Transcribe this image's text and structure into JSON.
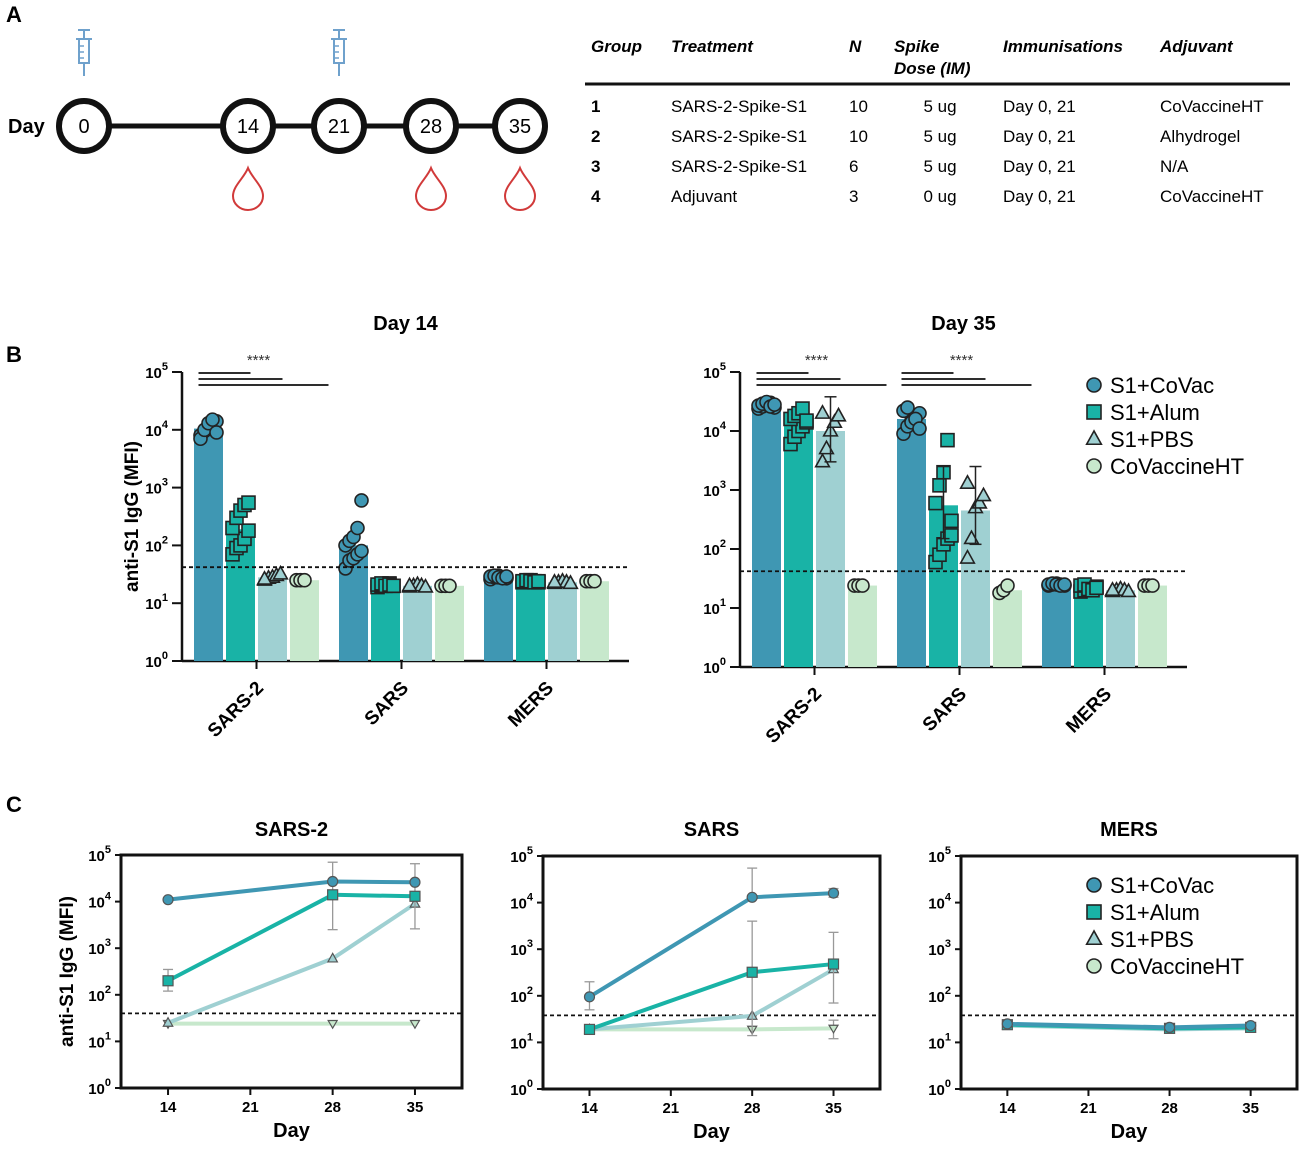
{
  "figure": {
    "panels": {
      "A": "A",
      "B": "B",
      "C": "C"
    }
  },
  "colors": {
    "S1+CoVac": "#3f97b3",
    "S1+Alum": "#19b3a6",
    "S1+PBS": "#9fd0d2",
    "CoVaccineHT": "#c7e8cc",
    "syringe": "#6fa1cc",
    "blood": "#d13a3a"
  },
  "timeline": {
    "axis_label": "Day",
    "days": [
      "0",
      "14",
      "21",
      "28",
      "35"
    ],
    "immunisation_days": [
      "0",
      "21"
    ],
    "bleed_days": [
      "14",
      "28",
      "35"
    ],
    "icons": {
      "immunisation": "syringe-icon",
      "bleed": "blood-drop-icon"
    }
  },
  "table": {
    "headers": [
      "Group",
      "Treatment",
      "N",
      "Spike Dose (IM)",
      "Immunisations",
      "Adjuvant"
    ],
    "header_lines": [
      [
        "Group"
      ],
      [
        "Treatment"
      ],
      [
        "N"
      ],
      [
        "Spike",
        "Dose (IM)"
      ],
      [
        "Immunisations"
      ],
      [
        "Adjuvant"
      ]
    ],
    "rows": [
      [
        "1",
        "SARS-2-Spike-S1",
        "10",
        "5 ug",
        "Day 0, 21",
        "CoVaccineHT"
      ],
      [
        "2",
        "SARS-2-Spike-S1",
        "10",
        "5 ug",
        "Day 0, 21",
        "Alhydrogel"
      ],
      [
        "3",
        "SARS-2-Spike-S1",
        "6",
        "5 ug",
        "Day 0, 21",
        "N/A"
      ],
      [
        "4",
        "Adjuvant",
        "3",
        "0 ug",
        "Day 0, 21",
        "CoVaccineHT"
      ]
    ]
  },
  "legend": {
    "entries": [
      {
        "label": "S1+CoVac",
        "marker": "circle"
      },
      {
        "label": "S1+Alum",
        "marker": "square"
      },
      {
        "label": "S1+PBS",
        "marker": "triangle"
      },
      {
        "label": "CoVaccineHT",
        "marker": "circle"
      }
    ]
  },
  "chart_data": [
    {
      "id": "B1",
      "type": "bar",
      "title": "Day 14",
      "ylabel": "anti-S1 IgG (MFI)",
      "xlabel": "",
      "yscale": "log",
      "ylim": [
        1,
        100000
      ],
      "ytick_exponents": [
        "0",
        "1",
        "2",
        "3",
        "4",
        "5"
      ],
      "categories": [
        "SARS-2",
        "SARS",
        "MERS"
      ],
      "cutoff": 42,
      "significance": {
        "label": "****",
        "category": "SARS-2",
        "comparisons": 3
      },
      "series": [
        {
          "name": "S1+CoVac",
          "values": [
            10500,
            100,
            28
          ],
          "points": [
            [
              8000,
              9500,
              11000,
              12500,
              14000,
              7000,
              10000,
              13000,
              15000,
              9000
            ],
            [
              40,
              55,
              60,
              70,
              80,
              100,
              120,
              140,
              200,
              600
            ],
            [
              26,
              28,
              30,
              28,
              27,
              29,
              30,
              28,
              27,
              29
            ]
          ]
        },
        {
          "name": "S1+Alum",
          "values": [
            190,
            21,
            24
          ],
          "points": [
            [
              70,
              90,
              100,
              130,
              180,
              200,
              300,
              400,
              500,
              550
            ],
            [
              19,
              20,
              21,
              22,
              20,
              21,
              22,
              20,
              21,
              20
            ],
            [
              23,
              24,
              25,
              24,
              23,
              24,
              25,
              24,
              23,
              24
            ]
          ]
        },
        {
          "name": "S1+PBS",
          "values": [
            28,
            20,
            23
          ],
          "points": [
            [
              25,
              27,
              28,
              30,
              32,
              26
            ],
            [
              19,
              20,
              21,
              20,
              19,
              20
            ],
            [
              22,
              23,
              24,
              23,
              22,
              23
            ]
          ]
        },
        {
          "name": "CoVaccineHT",
          "values": [
            25,
            20,
            24
          ],
          "points": [
            [
              25,
              25,
              25
            ],
            [
              20,
              20,
              20
            ],
            [
              24,
              24,
              24
            ]
          ]
        }
      ]
    },
    {
      "id": "B2",
      "type": "bar",
      "title": "Day 35",
      "ylabel": "",
      "xlabel": "",
      "yscale": "log",
      "ylim": [
        1,
        100000
      ],
      "ytick_exponents": [
        "0",
        "1",
        "2",
        "3",
        "4",
        "5"
      ],
      "categories": [
        "SARS-2",
        "SARS",
        "MERS"
      ],
      "cutoff": 42,
      "significance": [
        {
          "label": "****",
          "category": "SARS-2",
          "comparisons": 3
        },
        {
          "label": "****",
          "category": "SARS",
          "comparisons": 3
        }
      ],
      "series": [
        {
          "name": "S1+CoVac",
          "values": [
            27000,
            16000,
            25
          ],
          "points": [
            [
              24000,
              26000,
              28000,
              30000,
              25000,
              27000,
              29000,
              31000,
              26000,
              28000
            ],
            [
              9000,
              12000,
              15000,
              18000,
              20000,
              22000,
              25000,
              14000,
              16000,
              11000
            ],
            [
              24,
              25,
              26,
              25,
              24,
              25,
              26,
              25,
              24,
              25
            ]
          ]
        },
        {
          "name": "S1+Alum",
          "values": [
            13000,
            550,
            22
          ],
          "points": [
            [
              6000,
              8000,
              10000,
              12000,
              14000,
              16000,
              18000,
              20000,
              24000,
              15000
            ],
            [
              60,
              80,
              120,
              150,
              170,
              600,
              1200,
              2000,
              7000,
              300
            ],
            [
              19,
              20,
              21,
              22,
              23,
              24,
              25,
              21,
              20,
              22
            ]
          ]
        },
        {
          "name": "S1+PBS",
          "values": [
            10000,
            450,
            20
          ],
          "points": [
            [
              3000,
              5000,
              10000,
              14000,
              18000,
              20000
            ],
            [
              70,
              150,
              500,
              600,
              800,
              1300
            ],
            [
              19,
              20,
              21,
              20,
              19,
              20
            ]
          ]
        },
        {
          "name": "CoVaccineHT",
          "values": [
            24,
            20,
            24
          ],
          "points": [
            [
              24,
              24,
              24
            ],
            [
              18,
              20,
              24
            ],
            [
              24,
              24,
              24
            ]
          ]
        }
      ],
      "errors": [
        {
          "series": "S1+PBS",
          "category": "SARS-2",
          "low": 3000,
          "high": 38000
        },
        {
          "series": "S1+Alum",
          "category": "SARS",
          "low": 150,
          "high": 2500
        },
        {
          "series": "S1+PBS",
          "category": "SARS",
          "low": 120,
          "high": 2500
        }
      ]
    },
    {
      "id": "C1",
      "type": "line",
      "title": "SARS-2",
      "ylabel": "anti-S1 IgG (MFI)",
      "xlabel": "Day",
      "yscale": "log",
      "ylim": [
        1,
        100000
      ],
      "xlim": [
        10,
        39
      ],
      "x_ticks": [
        14,
        21,
        28,
        35
      ],
      "ytick_exponents": [
        "0",
        "1",
        "2",
        "3",
        "4",
        "5"
      ],
      "cutoff": 40,
      "series": [
        {
          "name": "S1+CoVac",
          "x": [
            14,
            28,
            35
          ],
          "values": [
            11000,
            27000,
            26000
          ]
        },
        {
          "name": "S1+Alum",
          "x": [
            14,
            28,
            35
          ],
          "values": [
            200,
            14000,
            13000
          ],
          "err_low": [
            120,
            2500,
            2600
          ],
          "err_high": [
            350,
            70000,
            65000
          ]
        },
        {
          "name": "S1+PBS",
          "x": [
            14,
            28,
            35
          ],
          "values": [
            25,
            600,
            9000
          ]
        },
        {
          "name": "CoVaccineHT",
          "x": [
            14,
            28,
            35
          ],
          "values": [
            24,
            24,
            24
          ]
        }
      ]
    },
    {
      "id": "C2",
      "type": "line",
      "title": "SARS",
      "ylabel": "",
      "xlabel": "Day",
      "yscale": "log",
      "ylim": [
        1,
        100000
      ],
      "xlim": [
        10,
        39
      ],
      "x_ticks": [
        14,
        21,
        28,
        35
      ],
      "ytick_exponents": [
        "0",
        "1",
        "2",
        "3",
        "4",
        "5"
      ],
      "cutoff": 38,
      "series": [
        {
          "name": "S1+CoVac",
          "x": [
            14,
            28,
            35
          ],
          "values": [
            95,
            13000,
            16000
          ],
          "err_low": [
            50,
            12000,
            13000
          ],
          "err_high": [
            200,
            55000,
            20000
          ]
        },
        {
          "name": "S1+Alum",
          "x": [
            14,
            28,
            35
          ],
          "values": [
            19,
            320,
            480
          ],
          "err_low": [
            19,
            14,
            70
          ],
          "err_high": [
            19,
            4000,
            2300
          ]
        },
        {
          "name": "S1+PBS",
          "x": [
            14,
            28,
            35
          ],
          "values": [
            19,
            37,
            370
          ]
        },
        {
          "name": "CoVaccineHT",
          "x": [
            14,
            28,
            35
          ],
          "values": [
            19,
            19,
            20
          ],
          "err_low": [
            19,
            19,
            12
          ],
          "err_high": [
            19,
            19,
            30
          ]
        }
      ]
    },
    {
      "id": "C3",
      "type": "line",
      "title": "MERS",
      "ylabel": "",
      "xlabel": "Day",
      "yscale": "log",
      "ylim": [
        1,
        100000
      ],
      "xlim": [
        10,
        39
      ],
      "x_ticks": [
        14,
        21,
        28,
        35
      ],
      "ytick_exponents": [
        "0",
        "1",
        "2",
        "3",
        "4",
        "5"
      ],
      "cutoff": 38,
      "series": [
        {
          "name": "S1+CoVac",
          "x": [
            14,
            28,
            35
          ],
          "values": [
            25,
            21,
            23
          ]
        },
        {
          "name": "S1+Alum",
          "x": [
            14,
            28,
            35
          ],
          "values": [
            24,
            20,
            21
          ]
        },
        {
          "name": "S1+PBS",
          "x": [
            14,
            28,
            35
          ],
          "values": [
            23,
            19,
            20
          ]
        },
        {
          "name": "CoVaccineHT",
          "x": [
            14,
            28,
            35
          ],
          "values": [
            24,
            20,
            22
          ]
        }
      ]
    }
  ]
}
